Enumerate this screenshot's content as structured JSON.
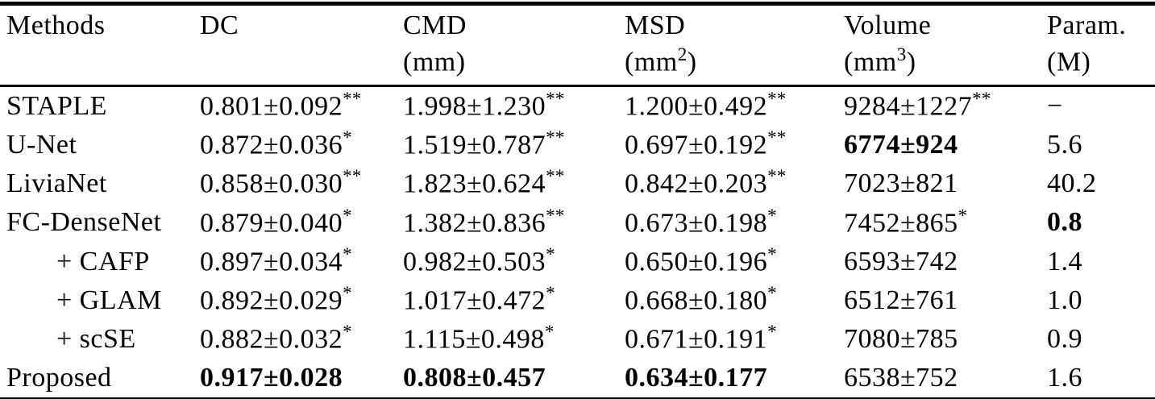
{
  "colors": {
    "text": "#000000",
    "background": "#ffffff",
    "rule": "#000000"
  },
  "table": {
    "columns": [
      {
        "label": "Methods",
        "unit": "",
        "unit_sup": "",
        "unit_end": ""
      },
      {
        "label": "DC",
        "unit": "",
        "unit_sup": "",
        "unit_end": ""
      },
      {
        "label": "CMD",
        "unit": "(mm)",
        "unit_sup": "",
        "unit_end": ""
      },
      {
        "label": "MSD",
        "unit": "(mm",
        "unit_sup": "2",
        "unit_end": ")"
      },
      {
        "label": "Volume",
        "unit": "(mm",
        "unit_sup": "3",
        "unit_end": ")"
      },
      {
        "label": "Param.",
        "unit": "(M)",
        "unit_sup": "",
        "unit_end": ""
      }
    ],
    "rows": [
      {
        "method": "STAPLE",
        "indent": false,
        "cells": [
          {
            "value": "0.801±0.092",
            "sup": "**",
            "bold": false
          },
          {
            "value": "1.998±1.230",
            "sup": "**",
            "bold": false
          },
          {
            "value": "1.200±0.492",
            "sup": "**",
            "bold": false
          },
          {
            "value": "9284±1227",
            "sup": "**",
            "bold": false
          },
          {
            "value": "−",
            "sup": "",
            "bold": false
          }
        ]
      },
      {
        "method": "U-Net",
        "indent": false,
        "cells": [
          {
            "value": "0.872±0.036",
            "sup": "*",
            "bold": false
          },
          {
            "value": "1.519±0.787",
            "sup": "**",
            "bold": false
          },
          {
            "value": "0.697±0.192",
            "sup": "**",
            "bold": false
          },
          {
            "value": "6774±924",
            "sup": "",
            "bold": true
          },
          {
            "value": "5.6",
            "sup": "",
            "bold": false
          }
        ]
      },
      {
        "method": "LiviaNet",
        "indent": false,
        "cells": [
          {
            "value": "0.858±0.030",
            "sup": "**",
            "bold": false
          },
          {
            "value": "1.823±0.624",
            "sup": "**",
            "bold": false
          },
          {
            "value": "0.842±0.203",
            "sup": "**",
            "bold": false
          },
          {
            "value": "7023±821",
            "sup": "",
            "bold": false
          },
          {
            "value": "40.2",
            "sup": "",
            "bold": false
          }
        ]
      },
      {
        "method": "FC-DenseNet",
        "indent": false,
        "cells": [
          {
            "value": "0.879±0.040",
            "sup": "*",
            "bold": false
          },
          {
            "value": "1.382±0.836",
            "sup": "**",
            "bold": false
          },
          {
            "value": "0.673±0.198",
            "sup": "*",
            "bold": false
          },
          {
            "value": "7452±865",
            "sup": "*",
            "bold": false
          },
          {
            "value": "0.8",
            "sup": "",
            "bold": true
          }
        ]
      },
      {
        "method": "+ CAFP",
        "indent": true,
        "cells": [
          {
            "value": "0.897±0.034",
            "sup": "*",
            "bold": false
          },
          {
            "value": "0.982±0.503",
            "sup": "*",
            "bold": false
          },
          {
            "value": "0.650±0.196",
            "sup": "*",
            "bold": false
          },
          {
            "value": "6593±742",
            "sup": "",
            "bold": false
          },
          {
            "value": "1.4",
            "sup": "",
            "bold": false
          }
        ]
      },
      {
        "method": "+ GLAM",
        "indent": true,
        "cells": [
          {
            "value": "0.892±0.029",
            "sup": "*",
            "bold": false
          },
          {
            "value": "1.017±0.472",
            "sup": "*",
            "bold": false
          },
          {
            "value": "0.668±0.180",
            "sup": "*",
            "bold": false
          },
          {
            "value": "6512±761",
            "sup": "",
            "bold": false
          },
          {
            "value": "1.0",
            "sup": "",
            "bold": false
          }
        ]
      },
      {
        "method": "+ scSE",
        "indent": true,
        "cells": [
          {
            "value": "0.882±0.032",
            "sup": "*",
            "bold": false
          },
          {
            "value": "1.115±0.498",
            "sup": "*",
            "bold": false
          },
          {
            "value": "0.671±0.191",
            "sup": "*",
            "bold": false
          },
          {
            "value": "7080±785",
            "sup": "",
            "bold": false
          },
          {
            "value": "0.9",
            "sup": "",
            "bold": false
          }
        ]
      },
      {
        "method": "Proposed",
        "indent": false,
        "cells": [
          {
            "value": "0.917±0.028",
            "sup": "",
            "bold": true
          },
          {
            "value": "0.808±0.457",
            "sup": "",
            "bold": true
          },
          {
            "value": "0.634±0.177",
            "sup": "",
            "bold": true
          },
          {
            "value": "6538±752",
            "sup": "",
            "bold": false
          },
          {
            "value": "1.6",
            "sup": "",
            "bold": false
          }
        ]
      }
    ]
  }
}
